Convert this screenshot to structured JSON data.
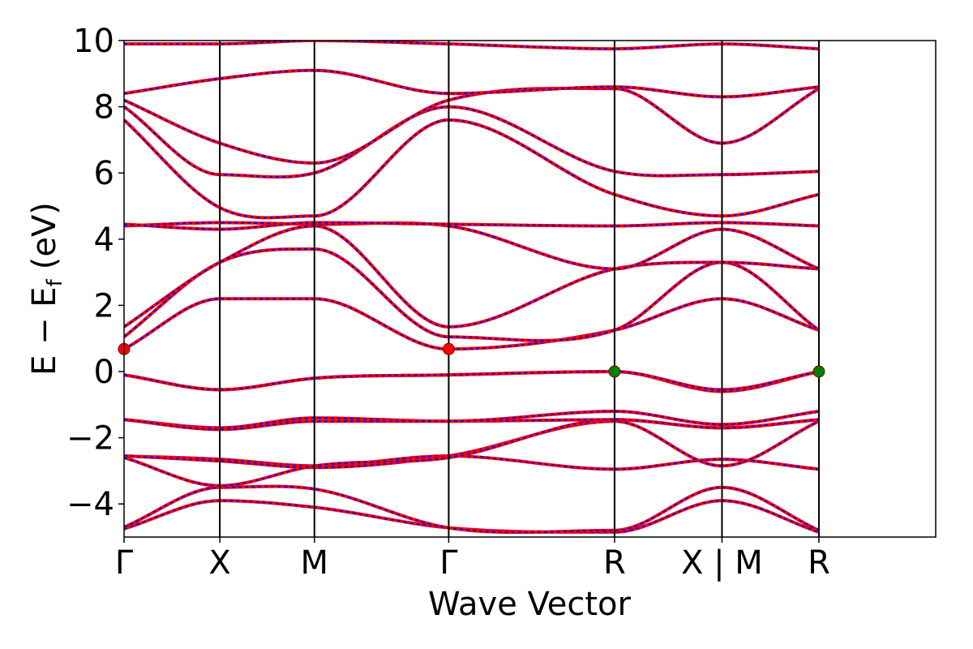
{
  "chart_data": {
    "type": "line",
    "title": "",
    "xlabel": "Wave Vector",
    "ylabel_main": "E − E",
    "ylabel_sub": "f",
    "ylabel_unit": "(eV)",
    "ylim": [
      -5,
      10
    ],
    "xlim": [
      0,
      6.95
    ],
    "yticks": [
      -4,
      -2,
      0,
      2,
      4,
      6,
      8,
      10
    ],
    "ytick_labels": [
      "−4",
      "−2",
      "0",
      "2",
      "4",
      "6",
      "8",
      "10"
    ],
    "kpoints": [
      {
        "label": "Γ",
        "x": 0
      },
      {
        "label": "X",
        "x": 0.82
      },
      {
        "label": "M",
        "x": 1.63
      },
      {
        "label": "Γ",
        "x": 2.78
      },
      {
        "label": "R",
        "x": 4.2
      },
      {
        "label": "X | M",
        "x": 5.12
      },
      {
        "label": "R",
        "x": 5.95
      }
    ],
    "colors": {
      "primary": "#ff0000",
      "overlay": "#0000ff",
      "cbm": "#ff0000",
      "vbm": "#008000"
    },
    "extrema": [
      {
        "name": "CBM",
        "x": 0,
        "y": 0.68
      },
      {
        "name": "CBM",
        "x": 2.78,
        "y": 0.68
      },
      {
        "name": "VBM",
        "x": 4.2,
        "y": 0.0
      },
      {
        "name": "VBM",
        "x": 5.95,
        "y": 0.0
      }
    ],
    "series": [
      {
        "x": [
          0,
          0.82,
          1.63,
          2.78,
          4.2,
          5.12,
          5.95
        ],
        "y": [
          -4.75,
          -3.9,
          -4.1,
          -4.72,
          -4.85,
          -3.9,
          -4.85
        ]
      },
      {
        "x": [
          0,
          0.82,
          1.63,
          2.78,
          4.2,
          5.12,
          5.95
        ],
        "y": [
          -4.7,
          -3.5,
          -3.55,
          -4.72,
          -4.8,
          -3.5,
          -4.8
        ]
      },
      {
        "x": [
          0,
          0.82,
          1.63,
          2.78,
          4.2,
          5.12,
          5.95
        ],
        "y": [
          -2.55,
          -2.65,
          -2.85,
          -2.55,
          -2.95,
          -2.65,
          -2.95
        ]
      },
      {
        "x": [
          0,
          0.82,
          1.63,
          2.78,
          4.2,
          5.12,
          5.95
        ],
        "y": [
          -2.55,
          -2.7,
          -2.9,
          -2.55,
          -1.5,
          -2.85,
          -1.5
        ]
      },
      {
        "x": [
          0,
          0.82,
          1.63,
          2.78,
          4.2,
          5.12,
          5.95
        ],
        "y": [
          -2.6,
          -3.45,
          -2.85,
          -2.6,
          -1.45,
          -1.7,
          -1.45
        ]
      },
      {
        "x": [
          0,
          0.82,
          1.63,
          2.78,
          4.2,
          5.12,
          5.95
        ],
        "y": [
          -1.45,
          -1.7,
          -1.4,
          -1.5,
          -1.45,
          -1.7,
          -1.45
        ]
      },
      {
        "x": [
          0,
          0.82,
          1.63,
          2.78,
          4.2,
          5.12,
          5.95
        ],
        "y": [
          -1.45,
          -1.75,
          -1.5,
          -1.5,
          -1.2,
          -1.6,
          -1.2
        ]
      },
      {
        "x": [
          0,
          0.82,
          1.63,
          2.78,
          4.2,
          5.12,
          5.95
        ],
        "y": [
          -0.1,
          -0.55,
          -0.2,
          -0.1,
          0.0,
          -0.6,
          0.0
        ]
      },
      {
        "x": [
          0,
          0.82,
          1.63,
          2.78,
          4.2,
          5.12,
          5.95
        ],
        "y": [
          -0.1,
          -0.55,
          -0.2,
          -0.1,
          0.0,
          -0.55,
          0.0
        ]
      },
      {
        "x": [
          0,
          0.82,
          1.63,
          2.78,
          4.2,
          5.12,
          5.95
        ],
        "y": [
          0.68,
          2.2,
          2.2,
          0.68,
          1.25,
          2.2,
          1.25
        ]
      },
      {
        "x": [
          0,
          0.82,
          1.63,
          2.78,
          4.2,
          5.12,
          5.95
        ],
        "y": [
          1.05,
          3.3,
          3.7,
          1.05,
          1.25,
          3.3,
          1.25
        ]
      },
      {
        "x": [
          0,
          0.82,
          1.63,
          2.78,
          4.2,
          5.12,
          5.95
        ],
        "y": [
          1.35,
          3.3,
          4.4,
          1.35,
          3.1,
          3.3,
          3.1
        ]
      },
      {
        "x": [
          0,
          0.82,
          1.63,
          2.78,
          4.2,
          5.12,
          5.95
        ],
        "y": [
          4.4,
          4.5,
          4.45,
          4.4,
          3.1,
          4.3,
          3.1
        ]
      },
      {
        "x": [
          0,
          0.82,
          1.63,
          2.78,
          4.2,
          5.12,
          5.95
        ],
        "y": [
          4.45,
          4.3,
          4.5,
          4.45,
          4.4,
          4.5,
          4.4
        ]
      },
      {
        "x": [
          0,
          0.82,
          1.63,
          2.78,
          4.2,
          5.12,
          5.95
        ],
        "y": [
          7.6,
          4.95,
          4.7,
          7.6,
          5.35,
          4.7,
          5.35
        ]
      },
      {
        "x": [
          0,
          0.82,
          1.63,
          2.78,
          4.2,
          5.12,
          5.95
        ],
        "y": [
          8.0,
          5.95,
          6.0,
          8.0,
          6.05,
          5.95,
          6.05
        ]
      },
      {
        "x": [
          0,
          0.82,
          1.63,
          2.78,
          4.2,
          5.12,
          5.95
        ],
        "y": [
          8.2,
          6.9,
          6.3,
          8.2,
          8.55,
          6.9,
          8.55
        ]
      },
      {
        "x": [
          0,
          0.82,
          1.63,
          2.78,
          4.2,
          5.12,
          5.95
        ],
        "y": [
          8.4,
          8.85,
          9.1,
          8.4,
          8.6,
          8.3,
          8.6
        ]
      },
      {
        "x": [
          0,
          0.82,
          1.63,
          2.78,
          4.2,
          5.12,
          5.95
        ],
        "y": [
          9.9,
          9.9,
          10.0,
          9.9,
          9.75,
          9.9,
          9.75
        ]
      }
    ]
  }
}
